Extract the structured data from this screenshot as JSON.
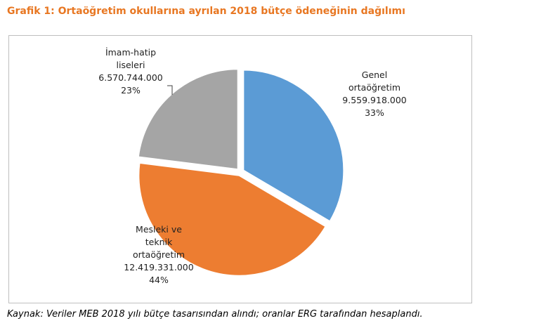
{
  "chart_data": {
    "type": "pie",
    "title": "Grafik 1: Ortaöğretim okullarına ayrılan 2018 bütçe ödeneğinin dağılımı",
    "categories": [
      "Genel\nortaöğretim",
      "Mesleki ve\nteknik\nortaöğretim",
      "İmam-hatip\nliseleri"
    ],
    "values": [
      9559918000,
      12419331000,
      6570744000
    ],
    "value_labels": [
      "9.559.918.000",
      "12.419.331.000",
      "6.570.744.000"
    ],
    "percentages": [
      33,
      44,
      23
    ],
    "percentage_labels": [
      "33%",
      "44%",
      "23%"
    ],
    "colors": [
      "#5b9bd5",
      "#ed7d31",
      "#a5a5a5"
    ],
    "source": "Kaynak: Veriler MEB 2018 yılı bütçe tasarısından alındı; oranlar ERG tarafından hesaplandı."
  }
}
